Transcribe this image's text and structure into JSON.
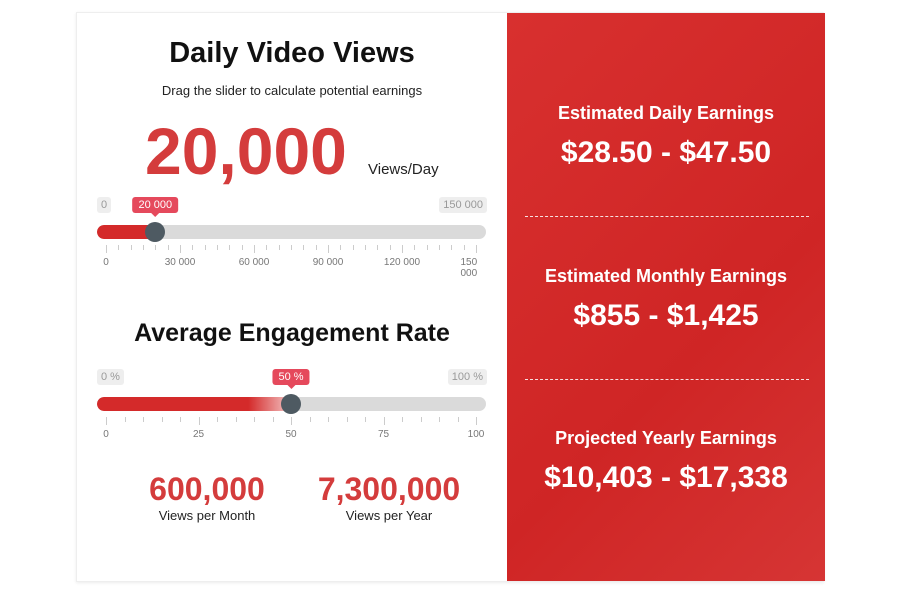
{
  "views": {
    "title": "Daily Video Views",
    "subtitle": "Drag the slider to calculate potential earnings",
    "value": "20,000",
    "unit": "Views/Day",
    "slider": {
      "min_label": "0",
      "max_label": "150 000",
      "value_label": "20 000",
      "value": 20000,
      "min": 0,
      "max": 150000,
      "ticks": [
        "0",
        "30 000",
        "60 000",
        "90 000",
        "120 000",
        "150 000"
      ]
    }
  },
  "engagement": {
    "title": "Average Engagement Rate",
    "slider": {
      "min_label": "0 %",
      "max_label": "100 %",
      "value_label": "50 %",
      "value": 50,
      "min": 0,
      "max": 100,
      "ticks": [
        "0",
        "25",
        "50",
        "75",
        "100"
      ]
    }
  },
  "stats": [
    {
      "value": "600,000",
      "label": "Views per Month"
    },
    {
      "value": "7,300,000",
      "label": "Views per Year"
    }
  ],
  "earnings": [
    {
      "label": "Estimated Daily Earnings",
      "value": "$28.50 - $47.50"
    },
    {
      "label": "Estimated Monthly Earnings",
      "value": "$855 - $1,425"
    },
    {
      "label": "Projected Yearly Earnings",
      "value": "$10,403 - $17,338"
    }
  ],
  "colors": {
    "accent": "#d43c3c",
    "panel": "#d42a2a",
    "thumb": "#4e5a62",
    "tooltip": "#e5495c"
  }
}
